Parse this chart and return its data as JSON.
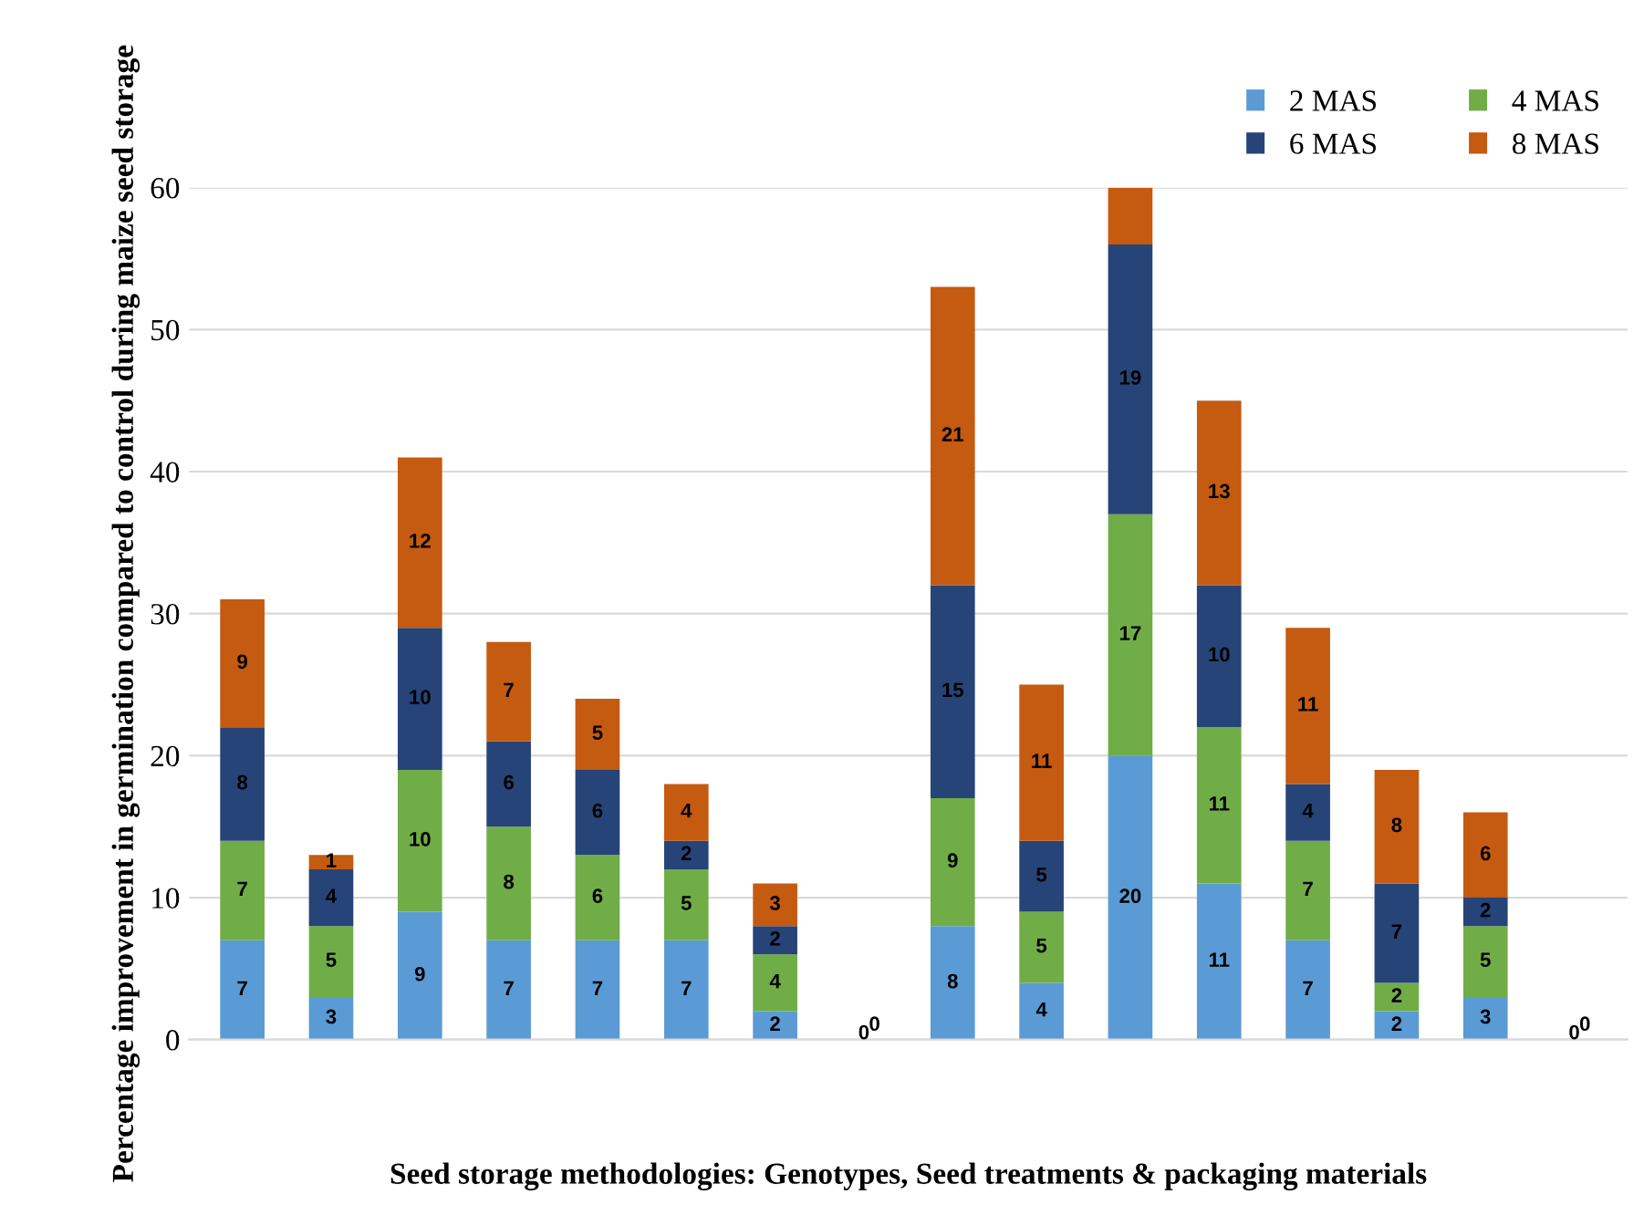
{
  "chart_data": {
    "type": "bar",
    "stacked": true,
    "xlabel": "Seed storage methodologies: Genotypes, Seed treatments & packaging materials",
    "ylabel": "Percentage improvement in germination compared to control during maize seed storage",
    "categories": [
      null,
      null,
      null,
      null,
      null,
      null,
      null,
      null,
      null,
      null,
      null,
      null,
      null,
      null,
      null,
      null
    ],
    "series": [
      {
        "name": "2 MAS",
        "color": "#5b9bd5",
        "values": [
          7,
          3,
          9,
          7,
          7,
          7,
          2,
          0,
          8,
          4,
          20,
          11,
          7,
          2,
          3,
          0
        ],
        "value_labels": [
          "7",
          "3",
          "9",
          "7",
          "7",
          "7",
          "2",
          "0",
          "8",
          "4",
          "20",
          "11",
          "7",
          "2",
          "3",
          "0"
        ]
      },
      {
        "name": "4 MAS",
        "color": "#70ad47",
        "values": [
          7,
          5,
          10,
          8,
          6,
          5,
          4,
          0,
          9,
          5,
          17,
          11,
          7,
          2,
          5,
          0
        ],
        "value_labels": [
          "7",
          "5",
          "10",
          "8",
          "6",
          "5",
          "4",
          "0",
          "9",
          "5",
          "17",
          "11",
          "7",
          "2",
          "5",
          "0"
        ]
      },
      {
        "name": "6 MAS",
        "color": "#264478",
        "values": [
          8,
          4,
          10,
          6,
          6,
          2,
          2,
          0,
          15,
          5,
          19,
          10,
          4,
          7,
          2,
          0
        ],
        "value_labels": [
          "8",
          "4",
          "10",
          "6",
          "6",
          "2",
          "2",
          null,
          "15",
          "5",
          "19",
          "10",
          "4",
          "7",
          "2",
          null
        ]
      },
      {
        "name": "8 MAS",
        "color": "#c55a11",
        "values": [
          9,
          1,
          12,
          7,
          5,
          4,
          3,
          0,
          21,
          11,
          4,
          13,
          11,
          8,
          6,
          0
        ],
        "value_labels": [
          "9",
          "1",
          "12",
          "7",
          "5",
          "4",
          "3",
          null,
          "21",
          "11",
          null,
          "13",
          "11",
          "8",
          "6",
          null
        ]
      }
    ],
    "ylim": [
      0,
      60
    ],
    "yticks": [
      0,
      10,
      20,
      30,
      40,
      50,
      60
    ],
    "grid": "y",
    "legend": "top right"
  }
}
